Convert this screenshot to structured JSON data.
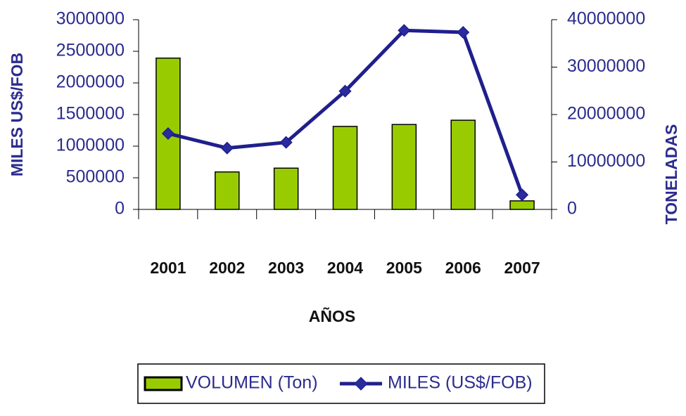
{
  "chart_data": {
    "type": "bar-line",
    "categories": [
      "2001",
      "2002",
      "2003",
      "2004",
      "2005",
      "2006",
      "2007"
    ],
    "x_label": "AÑOS",
    "y_label": "MILES US$/FOB",
    "y2_label": "TONELADAS",
    "series": [
      {
        "name": "VOLUMEN (Ton)",
        "type": "bar",
        "axis": "y2",
        "color": "#99cc00",
        "values": [
          31900000,
          7900000,
          8700000,
          17500000,
          17900000,
          18800000,
          1800000
        ]
      },
      {
        "name": "MILES (US$/FOB)",
        "type": "line",
        "axis": "y",
        "color": "#1f1f8c",
        "values": [
          1200000,
          970000,
          1060000,
          1870000,
          2830000,
          2800000,
          230000
        ]
      }
    ],
    "ylim": [
      0,
      3000000
    ],
    "yticks": [
      0,
      500000,
      1000000,
      1500000,
      2000000,
      2500000,
      3000000
    ],
    "y2lim": [
      0,
      40000000
    ],
    "y2ticks": [
      0,
      10000000,
      20000000,
      30000000,
      40000000
    ],
    "legend": "bottom"
  }
}
